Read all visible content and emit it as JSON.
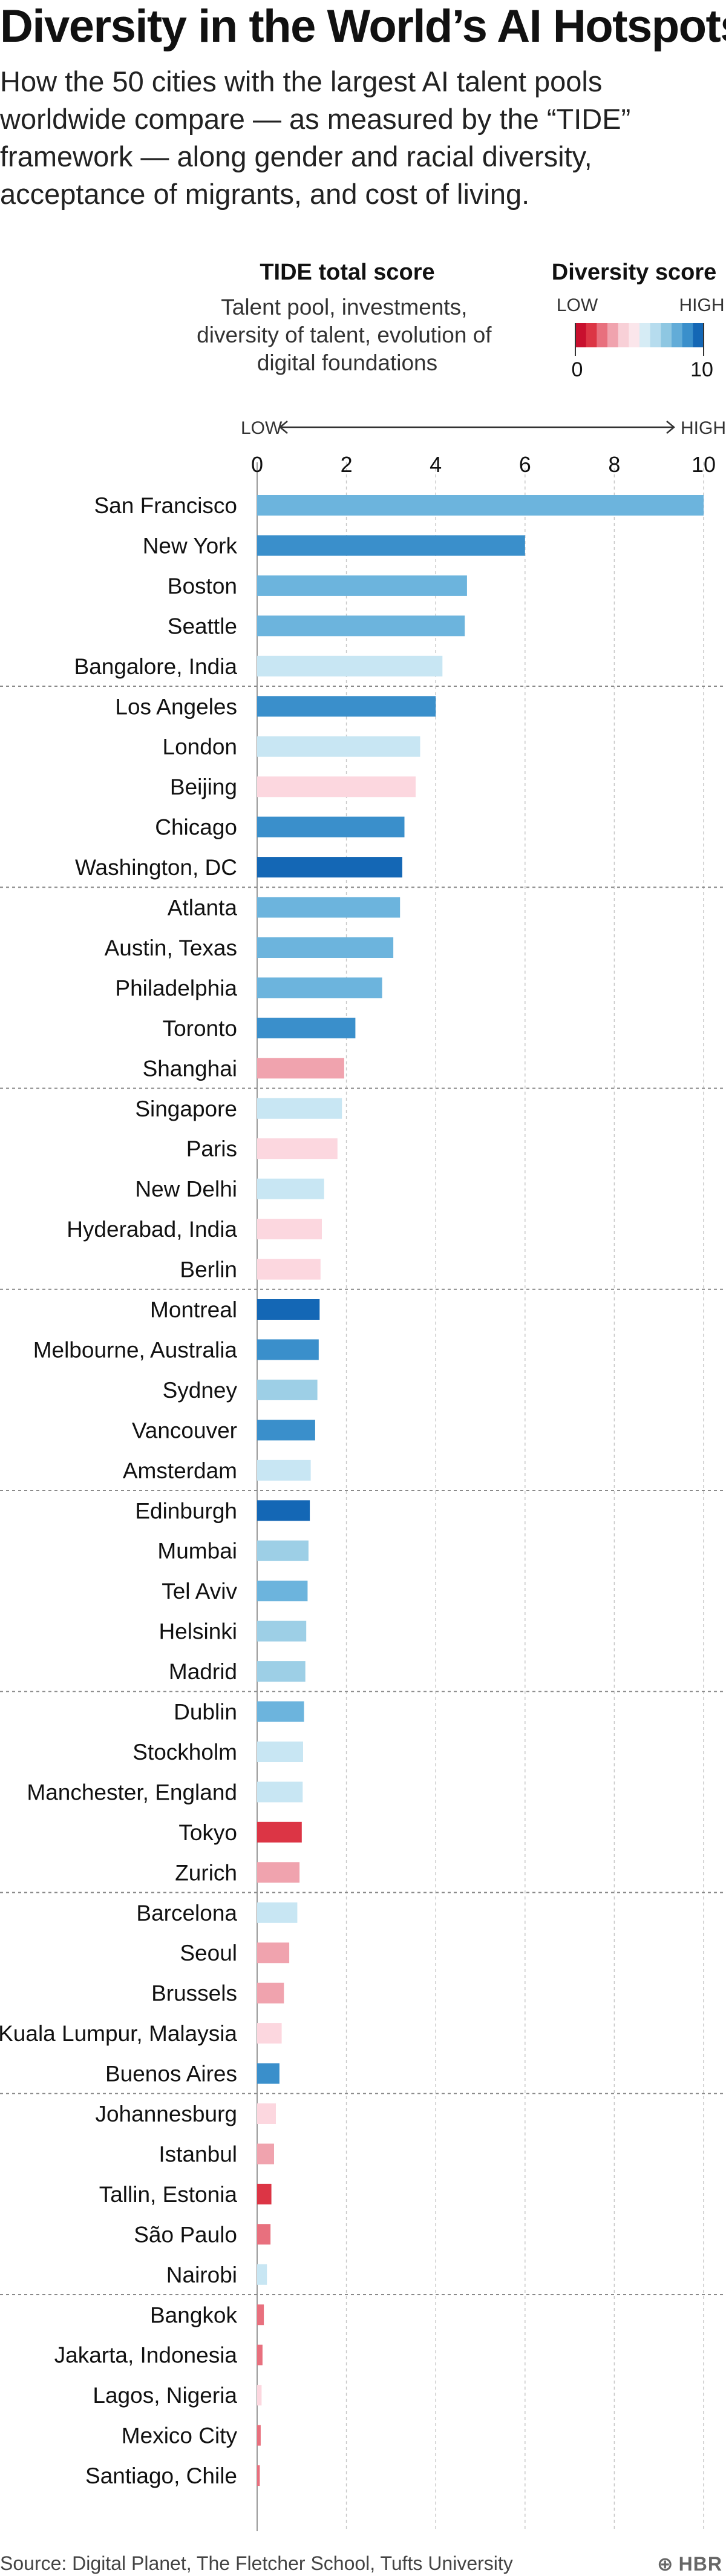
{
  "title": "Diversity in the World’s AI Hotspots",
  "subtitle": "How the 50 cities with the largest AI talent pools worldwide compare — as measured by the “TIDE” framework — along gender and racial diversity, acceptance of migrants, and cost of living.",
  "source": "Source: Digital Planet, The Fletcher School, Tufts University",
  "brand": "HBR",
  "chart_data": {
    "type": "bar",
    "orientation": "horizontal",
    "xlabel": "TIDE total score",
    "xlabel_description": "Talent pool, investments, diversity of talent, evolution of digital foundations",
    "xlim": [
      0,
      10
    ],
    "xticks": [
      0,
      2,
      4,
      6,
      8,
      10
    ],
    "axis_low_label": "LOW",
    "axis_high_label": "HIGH",
    "grid": true,
    "color_legend": {
      "title": "Diversity score",
      "low_label": "LOW",
      "high_label": "HIGH",
      "min": 0,
      "max": 10,
      "colors": [
        "#c8102e",
        "#dc3545",
        "#e8707e",
        "#f0a3ae",
        "#f8d0d7",
        "#fbe6eb",
        "#d6ecf5",
        "#b6dcee",
        "#8ec7e2",
        "#62acd8",
        "#3a8fcb",
        "#1467b5"
      ]
    },
    "groups_of": 5,
    "cities": [
      "San Francisco",
      "New York",
      "Boston",
      "Seattle",
      "Bangalore, India",
      "Los Angeles",
      "London",
      "Beijing",
      "Chicago",
      "Washington, DC",
      "Atlanta",
      "Austin, Texas",
      "Philadelphia",
      "Toronto",
      "Shanghai",
      "Singapore",
      "Paris",
      "New Delhi",
      "Hyderabad, India",
      "Berlin",
      "Montreal",
      "Melbourne, Australia",
      "Sydney",
      "Vancouver",
      "Amsterdam",
      "Edinburgh",
      "Mumbai",
      "Tel Aviv",
      "Helsinki",
      "Madrid",
      "Dublin",
      "Stockholm",
      "Manchester, England",
      "Tokyo",
      "Zurich",
      "Barcelona",
      "Seoul",
      "Brussels",
      "Kuala Lumpur, Malaysia",
      "Buenos Aires",
      "Johannesburg",
      "Istanbul",
      "Tallin, Estonia",
      "São Paulo",
      "Nairobi",
      "Bangkok",
      "Jakarta, Indonesia",
      "Lagos, Nigeria",
      "Mexico City",
      "Santiago, Chile"
    ],
    "tide_score": [
      10.0,
      6.0,
      4.7,
      4.65,
      4.15,
      4.0,
      3.65,
      3.55,
      3.3,
      3.25,
      3.2,
      3.05,
      2.8,
      2.2,
      1.95,
      1.9,
      1.8,
      1.5,
      1.45,
      1.42,
      1.4,
      1.38,
      1.35,
      1.3,
      1.2,
      1.18,
      1.15,
      1.13,
      1.1,
      1.08,
      1.05,
      1.03,
      1.02,
      1.0,
      0.95,
      0.9,
      0.72,
      0.6,
      0.55,
      0.5,
      0.42,
      0.38,
      0.32,
      0.3,
      0.22,
      0.15,
      0.12,
      0.1,
      0.08,
      0.06
    ],
    "diversity_color": [
      "#6cb4dd",
      "#3a8fcb",
      "#6cb4dd",
      "#6cb4dd",
      "#c8e6f3",
      "#3a8fcb",
      "#c8e6f3",
      "#fcd7df",
      "#3a8fcb",
      "#1467b5",
      "#6cb4dd",
      "#6cb4dd",
      "#6cb4dd",
      "#3a8fcb",
      "#f0a3ae",
      "#c8e6f3",
      "#fcd7df",
      "#c8e6f3",
      "#fcd7df",
      "#fcd7df",
      "#1467b5",
      "#3a8fcb",
      "#9dcfe6",
      "#3a8fcb",
      "#c8e6f3",
      "#1467b5",
      "#9dcfe6",
      "#6cb4dd",
      "#9dcfe6",
      "#9dcfe6",
      "#6cb4dd",
      "#c8e6f3",
      "#c8e6f3",
      "#dc3545",
      "#f0a3ae",
      "#c8e6f3",
      "#f0a3ae",
      "#f0a3ae",
      "#fcd7df",
      "#3a8fcb",
      "#fcd7df",
      "#f0a3ae",
      "#dc3545",
      "#e8707e",
      "#c8e6f3",
      "#e8707e",
      "#e8707e",
      "#fcd7df",
      "#e8707e",
      "#e8707e"
    ]
  }
}
